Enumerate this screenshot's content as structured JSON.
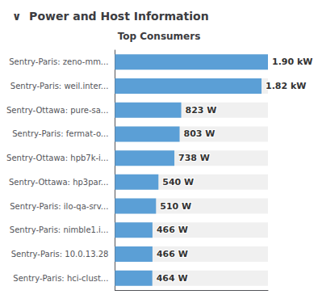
{
  "chart_data": {
    "type": "bar",
    "orientation": "horizontal",
    "title": "∨  Power and Host Information",
    "subtitle": "Top Consumers",
    "categories": [
      "Sentry-Paris: zeno-mm...",
      "Sentry-Paris: weil.inter...",
      "Sentry-Ottawa: pure-sa...",
      "Sentry-Paris: fermat-o...",
      "Sentry-Ottawa: hpb7k-i...",
      "Sentry-Ottawa: hp3par...",
      "Sentry-Paris: ilo-qa-srv...",
      "Sentry-Paris: nimble1.i...",
      "Sentry-Paris: 10.0.13.28",
      "Sentry-Paris: hci-clust..."
    ],
    "values": [
      1900,
      1820,
      823,
      803,
      738,
      540,
      510,
      466,
      466,
      464
    ],
    "value_labels": [
      "1.90 kW",
      "1.82 kW",
      "823 W",
      "803 W",
      "738 W",
      "540 W",
      "510 W",
      "466 W",
      "466 W",
      "464 W"
    ],
    "data_labels": true,
    "xlim": [
      0,
      1900
    ],
    "tick_labels": "y",
    "grid": false,
    "color": "#5b9fd6"
  }
}
